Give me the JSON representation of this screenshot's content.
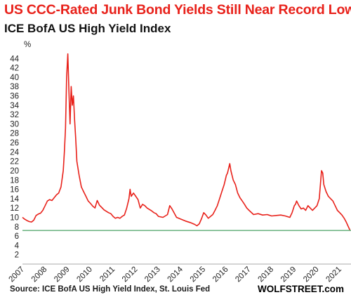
{
  "colors": {
    "title": "#e8211a",
    "line": "#e8211a",
    "reference_line": "#1e8a3e",
    "axis": "#aaaaaa"
  },
  "chart_data": {
    "type": "line",
    "title": "US CCC-Rated Junk Bond Yields Still Near Record Lows",
    "subtitle": "ICE BofA US High Yield Index",
    "ylabel": "%",
    "xlabel": "",
    "ylim": [
      0,
      46
    ],
    "xlim": [
      2007.0,
      2021.5
    ],
    "grid": false,
    "legend": "none",
    "y_ticks": [
      2,
      4,
      6,
      8,
      10,
      12,
      14,
      16,
      18,
      20,
      22,
      24,
      26,
      28,
      30,
      32,
      34,
      36,
      38,
      40,
      42,
      44
    ],
    "x_ticks": [
      "2007",
      "2008",
      "2009",
      "2010",
      "2011",
      "2012",
      "2013",
      "2014",
      "2015",
      "2016",
      "2017",
      "2018",
      "2019",
      "2020",
      "2021"
    ],
    "reference_line": 7.2,
    "series": [
      {
        "x": [
          2007.0,
          2007.1,
          2007.2,
          2007.3,
          2007.4,
          2007.5,
          2007.6,
          2007.7,
          2007.8,
          2007.9,
          2008.0,
          2008.1,
          2008.2,
          2008.3,
          2008.4,
          2008.5,
          2008.6,
          2008.7,
          2008.8,
          2008.85,
          2008.9,
          2008.95,
          2009.0,
          2009.05,
          2009.1,
          2009.15,
          2009.2,
          2009.25,
          2009.3,
          2009.35,
          2009.4,
          2009.5,
          2009.6,
          2009.7,
          2009.8,
          2009.9,
          2010.0,
          2010.1,
          2010.2,
          2010.3,
          2010.4,
          2010.5,
          2010.6,
          2010.7,
          2010.8,
          2010.9,
          2011.0,
          2011.1,
          2011.2,
          2011.3,
          2011.4,
          2011.5,
          2011.6,
          2011.7,
          2011.75,
          2011.8,
          2011.9,
          2012.0,
          2012.1,
          2012.2,
          2012.3,
          2012.4,
          2012.5,
          2012.6,
          2012.7,
          2012.8,
          2012.9,
          2013.0,
          2013.2,
          2013.4,
          2013.5,
          2013.6,
          2013.8,
          2014.0,
          2014.2,
          2014.4,
          2014.5,
          2014.6,
          2014.7,
          2014.8,
          2014.9,
          2015.0,
          2015.1,
          2015.2,
          2015.3,
          2015.4,
          2015.5,
          2015.6,
          2015.7,
          2015.8,
          2015.9,
          2016.0,
          2016.05,
          2016.1,
          2016.15,
          2016.2,
          2016.3,
          2016.4,
          2016.5,
          2016.6,
          2016.7,
          2016.8,
          2016.9,
          2017.0,
          2017.2,
          2017.4,
          2017.6,
          2017.8,
          2018.0,
          2018.2,
          2018.4,
          2018.6,
          2018.8,
          2018.9,
          2019.0,
          2019.05,
          2019.1,
          2019.2,
          2019.3,
          2019.4,
          2019.5,
          2019.6,
          2019.7,
          2019.8,
          2019.9,
          2020.0,
          2020.1,
          2020.15,
          2020.2,
          2020.25,
          2020.3,
          2020.4,
          2020.5,
          2020.6,
          2020.7,
          2020.8,
          2020.9,
          2021.0,
          2021.1,
          2021.2,
          2021.3,
          2021.4,
          2021.45
        ],
        "y": [
          10.0,
          9.6,
          9.3,
          9.1,
          9.0,
          9.4,
          10.4,
          10.7,
          10.9,
          11.5,
          12.5,
          13.5,
          13.8,
          13.6,
          14.2,
          14.8,
          15.2,
          16.5,
          20.0,
          24.0,
          29.0,
          40.0,
          45.0,
          37.0,
          30.0,
          38.0,
          34.0,
          36.0,
          31.0,
          27.0,
          22.0,
          19.0,
          16.5,
          15.5,
          14.5,
          13.5,
          13.0,
          12.4,
          12.0,
          13.6,
          12.6,
          12.1,
          11.6,
          11.3,
          11.0,
          10.8,
          10.2,
          9.8,
          10.0,
          9.8,
          10.2,
          10.5,
          12.0,
          14.0,
          16.0,
          14.5,
          15.2,
          14.5,
          13.8,
          12.0,
          12.8,
          12.5,
          12.0,
          11.7,
          11.4,
          11.0,
          10.8,
          10.2,
          10.0,
          10.6,
          12.5,
          11.8,
          10.0,
          9.6,
          9.2,
          8.9,
          8.7,
          8.5,
          8.2,
          8.6,
          9.7,
          11.0,
          10.5,
          9.8,
          10.2,
          10.6,
          11.5,
          12.5,
          14.0,
          15.5,
          17.0,
          19.0,
          19.5,
          20.5,
          21.5,
          20.0,
          18.0,
          17.0,
          15.2,
          14.2,
          13.5,
          12.8,
          12.0,
          11.5,
          10.6,
          10.8,
          10.5,
          10.6,
          10.3,
          10.4,
          10.5,
          10.3,
          10.0,
          11.0,
          12.5,
          12.8,
          13.5,
          12.5,
          11.8,
          12.0,
          11.5,
          12.5,
          12.0,
          11.5,
          12.0,
          12.5,
          14.0,
          17.0,
          20.0,
          19.5,
          17.0,
          15.5,
          14.5,
          14.0,
          13.5,
          12.5,
          11.5,
          11.0,
          10.5,
          9.8,
          8.9,
          7.8,
          7.3
        ]
      }
    ]
  },
  "footer": {
    "source": "Source: ICE BofA US High Yield Index, St. Louis Fed",
    "brand": "WOLFSTREET.com"
  }
}
